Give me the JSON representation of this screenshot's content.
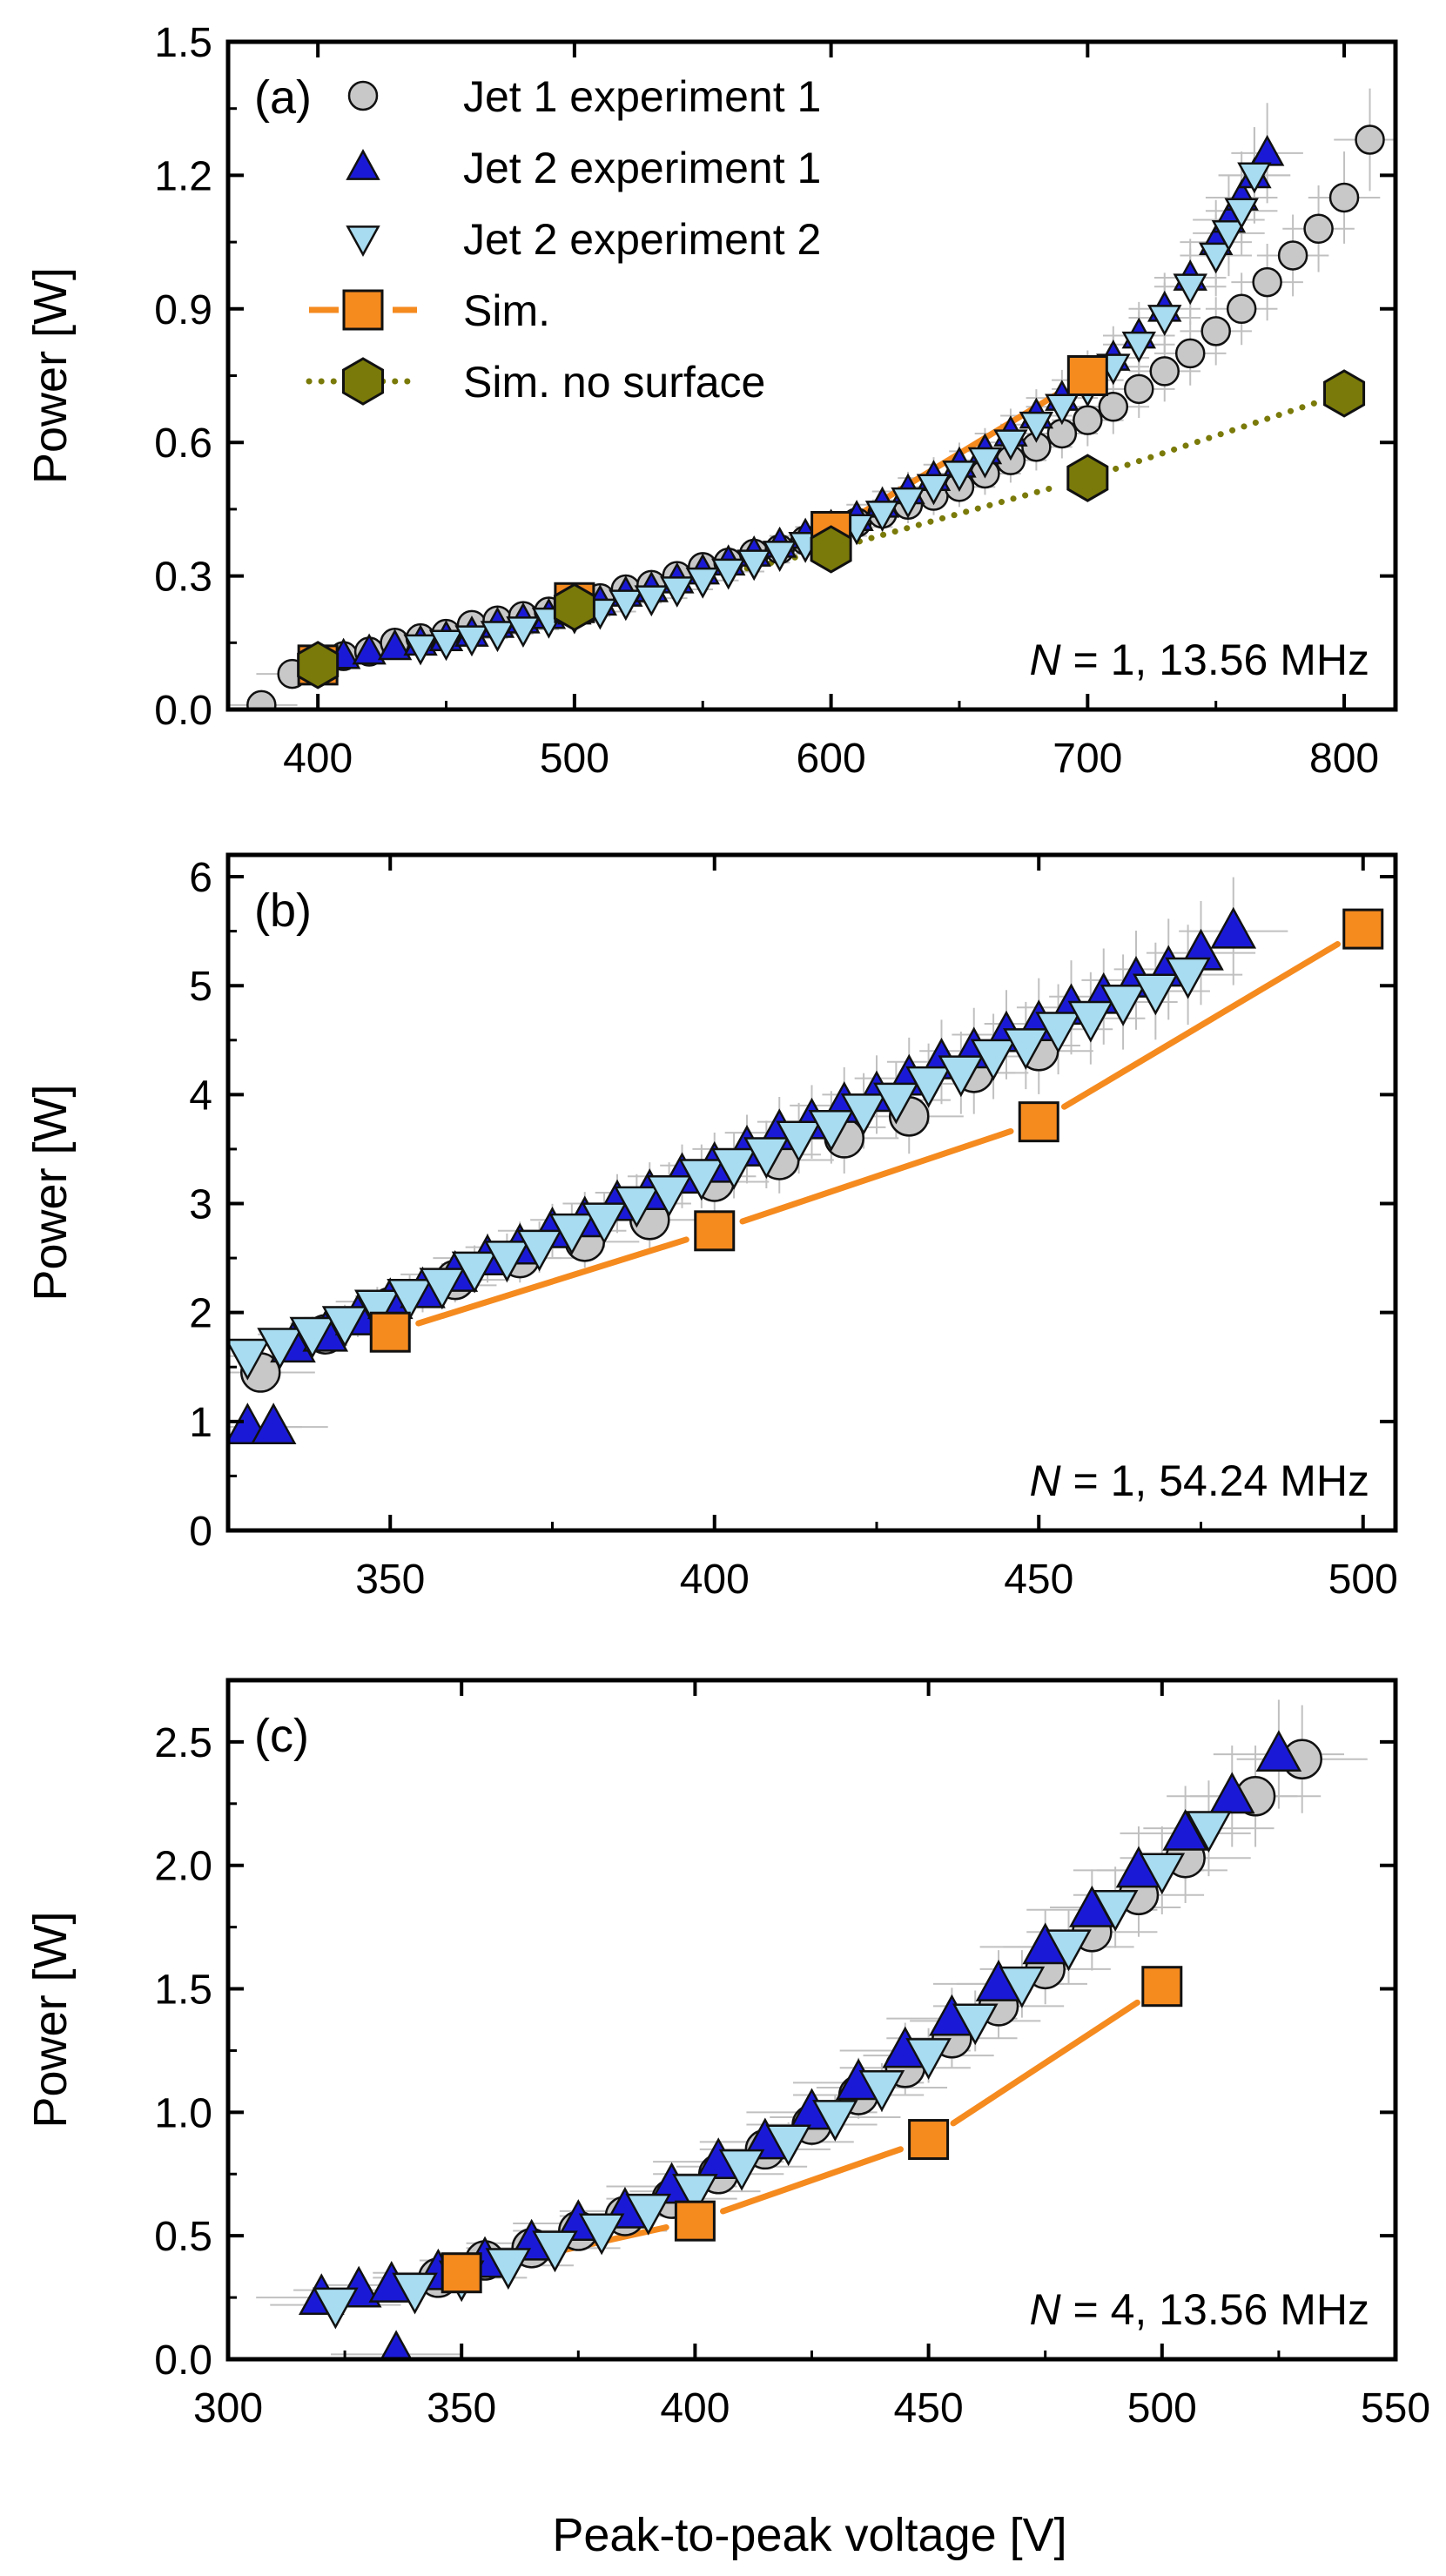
{
  "figure": {
    "xlabel": "Peak-to-peak voltage [V]",
    "legend": [
      {
        "label": "Jet 1 experiment 1",
        "marker": "circle"
      },
      {
        "label": "Jet 2 experiment 1",
        "marker": "triangle-up"
      },
      {
        "label": "Jet 2 experiment 2",
        "marker": "triangle-down"
      },
      {
        "label": "Sim.",
        "marker": "square"
      },
      {
        "label": "Sim. no surface",
        "marker": "hexagon"
      }
    ]
  },
  "colors": {
    "jet1": "#c8c8c8",
    "jet2_exp1": "#1a1ad6",
    "jet2_exp2": "#a8dcf0",
    "sim": "#f58a1f",
    "sim_no_surface": "#7a7a0a",
    "errorbar": "#c0c0c0"
  },
  "chart_data": [
    {
      "type": "scatter",
      "panel": "(a)",
      "annotation_var": "N",
      "annotation_rest": " = 1, 13.56 MHz",
      "ylabel": "Power [W]",
      "xlim": [
        365,
        820
      ],
      "ylim": [
        0,
        1.5
      ],
      "xticks": [
        400,
        500,
        600,
        700,
        800
      ],
      "xtick_labels": [
        "400",
        "500",
        "600",
        "700",
        "800"
      ],
      "yticks": [
        0,
        0.3,
        0.6,
        0.9,
        1.2,
        1.5
      ],
      "ytick_labels": [
        "0.0",
        "0.3",
        "0.6",
        "0.9",
        "1.2",
        "1.5"
      ],
      "series": [
        {
          "name": "Jet 1 experiment 1",
          "key": "jet1",
          "marker": "circle",
          "x": [
            378,
            390,
            400,
            410,
            420,
            430,
            440,
            450,
            460,
            470,
            480,
            490,
            500,
            510,
            520,
            530,
            540,
            550,
            560,
            570,
            580,
            590,
            600,
            610,
            620,
            630,
            640,
            650,
            660,
            670,
            680,
            690,
            700,
            710,
            720,
            730,
            740,
            750,
            760,
            770,
            780,
            790,
            800,
            810
          ],
          "y": [
            0.01,
            0.08,
            0.1,
            0.12,
            0.13,
            0.15,
            0.16,
            0.17,
            0.19,
            0.2,
            0.21,
            0.22,
            0.24,
            0.25,
            0.27,
            0.28,
            0.3,
            0.32,
            0.33,
            0.35,
            0.36,
            0.38,
            0.4,
            0.42,
            0.44,
            0.46,
            0.48,
            0.5,
            0.53,
            0.56,
            0.59,
            0.62,
            0.65,
            0.68,
            0.72,
            0.76,
            0.8,
            0.85,
            0.9,
            0.96,
            1.02,
            1.08,
            1.15,
            1.28
          ]
        },
        {
          "name": "Jet 2 experiment 1",
          "key": "jet2_exp1",
          "marker": "triangle-up",
          "x": [
            410,
            420,
            430,
            440,
            450,
            460,
            470,
            480,
            490,
            500,
            510,
            520,
            530,
            540,
            550,
            560,
            570,
            580,
            590,
            600,
            610,
            620,
            630,
            640,
            650,
            660,
            670,
            680,
            690,
            700,
            710,
            720,
            730,
            740,
            750,
            755,
            760,
            765,
            770
          ],
          "y": [
            0.12,
            0.13,
            0.14,
            0.15,
            0.16,
            0.17,
            0.19,
            0.2,
            0.21,
            0.22,
            0.24,
            0.26,
            0.27,
            0.29,
            0.31,
            0.33,
            0.35,
            0.37,
            0.39,
            0.41,
            0.43,
            0.46,
            0.49,
            0.52,
            0.55,
            0.58,
            0.62,
            0.66,
            0.7,
            0.74,
            0.79,
            0.84,
            0.9,
            0.97,
            1.05,
            1.1,
            1.15,
            1.2,
            1.25
          ]
        },
        {
          "name": "Jet 2 experiment 2",
          "key": "jet2_exp2",
          "marker": "triangle-down",
          "x": [
            440,
            450,
            460,
            470,
            480,
            490,
            500,
            510,
            520,
            530,
            540,
            550,
            560,
            570,
            580,
            590,
            600,
            610,
            620,
            630,
            640,
            650,
            660,
            670,
            680,
            690,
            700,
            710,
            720,
            730,
            740,
            750,
            755,
            760,
            765
          ],
          "y": [
            0.14,
            0.15,
            0.16,
            0.17,
            0.18,
            0.2,
            0.21,
            0.22,
            0.24,
            0.25,
            0.27,
            0.29,
            0.31,
            0.33,
            0.35,
            0.37,
            0.39,
            0.41,
            0.44,
            0.47,
            0.5,
            0.53,
            0.56,
            0.6,
            0.64,
            0.68,
            0.72,
            0.77,
            0.82,
            0.88,
            0.95,
            1.02,
            1.07,
            1.12,
            1.2
          ]
        },
        {
          "name": "Sim.",
          "key": "sim",
          "marker": "square",
          "line": "solid",
          "x": [
            400,
            500,
            600,
            700
          ],
          "y": [
            0.1,
            0.24,
            0.4,
            0.75
          ]
        },
        {
          "name": "Sim. no surface",
          "key": "sim_no_surface",
          "marker": "hexagon",
          "line": "dotted",
          "x": [
            400,
            500,
            600,
            700,
            800
          ],
          "y": [
            0.1,
            0.23,
            0.36,
            0.52,
            0.71
          ]
        }
      ]
    },
    {
      "type": "scatter",
      "panel": "(b)",
      "annotation_var": "N",
      "annotation_rest": " = 1, 54.24 MHz",
      "ylabel": "Power [W]",
      "xlim": [
        325,
        505
      ],
      "ylim": [
        0,
        6.2
      ],
      "xticks": [
        350,
        400,
        450,
        500
      ],
      "xtick_labels": [
        "350",
        "400",
        "450",
        "500"
      ],
      "yticks": [
        0,
        1,
        2,
        3,
        4,
        5,
        6
      ],
      "ytick_labels": [
        "0",
        "1",
        "2",
        "3",
        "4",
        "5",
        "6"
      ],
      "series": [
        {
          "name": "Jet 1 experiment 1",
          "key": "jet1",
          "marker": "circle",
          "x": [
            330,
            340,
            350,
            360,
            370,
            380,
            390,
            400,
            410,
            420,
            430,
            440,
            450
          ],
          "y": [
            1.45,
            1.8,
            2.05,
            2.3,
            2.5,
            2.65,
            2.85,
            3.2,
            3.4,
            3.6,
            3.8,
            4.2,
            4.4
          ]
        },
        {
          "name": "Jet 2 experiment 1",
          "key": "jet2_exp1",
          "marker": "triangle-up",
          "x": [
            328,
            332,
            335,
            340,
            345,
            350,
            355,
            360,
            365,
            370,
            375,
            380,
            385,
            390,
            395,
            400,
            405,
            410,
            415,
            420,
            425,
            430,
            435,
            440,
            445,
            450,
            455,
            460,
            465,
            470,
            475,
            480
          ],
          "y": [
            0.95,
            0.95,
            1.7,
            1.8,
            1.95,
            2.1,
            2.2,
            2.35,
            2.5,
            2.6,
            2.75,
            2.85,
            3.0,
            3.1,
            3.25,
            3.35,
            3.5,
            3.65,
            3.75,
            3.9,
            4.0,
            4.15,
            4.3,
            4.4,
            4.55,
            4.65,
            4.8,
            4.9,
            5.05,
            5.15,
            5.3,
            5.5
          ]
        },
        {
          "name": "Jet 2 experiment 2",
          "key": "jet2_exp2",
          "marker": "triangle-down",
          "x": [
            328,
            333,
            338,
            343,
            348,
            353,
            358,
            363,
            368,
            373,
            378,
            383,
            388,
            393,
            398,
            403,
            408,
            413,
            418,
            423,
            428,
            433,
            438,
            443,
            448,
            453,
            458,
            463,
            468,
            473
          ],
          "y": [
            1.6,
            1.7,
            1.8,
            1.9,
            2.05,
            2.15,
            2.25,
            2.4,
            2.5,
            2.6,
            2.75,
            2.85,
            3.0,
            3.1,
            3.25,
            3.35,
            3.45,
            3.6,
            3.7,
            3.85,
            3.95,
            4.1,
            4.2,
            4.35,
            4.45,
            4.6,
            4.7,
            4.85,
            4.95,
            5.1
          ]
        },
        {
          "name": "Sim.",
          "key": "sim",
          "marker": "square",
          "line": "solid",
          "x": [
            350,
            400,
            450,
            500
          ],
          "y": [
            1.82,
            2.75,
            3.75,
            5.52
          ]
        }
      ]
    },
    {
      "type": "scatter",
      "panel": "(c)",
      "annotation_var": "N",
      "annotation_rest": " = 4, 13.56 MHz",
      "ylabel": "Power [W]",
      "xlim": [
        300,
        550
      ],
      "ylim": [
        0,
        2.75
      ],
      "xticks": [
        300,
        350,
        400,
        450,
        500,
        550
      ],
      "xtick_labels": [
        "300",
        "350",
        "400",
        "450",
        "500",
        "550"
      ],
      "yticks": [
        0,
        0.5,
        1.0,
        1.5,
        2.0,
        2.5
      ],
      "ytick_labels": [
        "0.0",
        "0.5",
        "1.0",
        "1.5",
        "2.0",
        "2.5"
      ],
      "series": [
        {
          "name": "Jet 1 experiment 1",
          "key": "jet1",
          "marker": "circle",
          "x": [
            345,
            355,
            365,
            375,
            385,
            395,
            405,
            415,
            425,
            435,
            445,
            455,
            465,
            475,
            485,
            495,
            505,
            520,
            530
          ],
          "y": [
            0.33,
            0.4,
            0.45,
            0.52,
            0.58,
            0.65,
            0.75,
            0.85,
            0.95,
            1.07,
            1.18,
            1.3,
            1.43,
            1.58,
            1.73,
            1.88,
            2.03,
            2.28,
            2.43
          ]
        },
        {
          "name": "Jet 2 experiment 1",
          "key": "jet2_exp1",
          "marker": "triangle-up",
          "x": [
            320,
            328,
            335,
            336,
            345,
            355,
            365,
            375,
            385,
            395,
            405,
            415,
            425,
            435,
            445,
            455,
            465,
            475,
            485,
            495,
            505,
            515,
            525
          ],
          "y": [
            0.25,
            0.28,
            0.3,
            0.02,
            0.35,
            0.4,
            0.47,
            0.55,
            0.6,
            0.7,
            0.8,
            0.88,
            1.0,
            1.12,
            1.25,
            1.38,
            1.52,
            1.67,
            1.82,
            1.98,
            2.13,
            2.28,
            2.45
          ]
        },
        {
          "name": "Jet 2 experiment 2",
          "key": "jet2_exp2",
          "marker": "triangle-down",
          "x": [
            323,
            340,
            350,
            360,
            370,
            380,
            390,
            400,
            410,
            420,
            430,
            440,
            450,
            460,
            470,
            480,
            490,
            500,
            510
          ],
          "y": [
            0.22,
            0.28,
            0.33,
            0.38,
            0.45,
            0.52,
            0.6,
            0.68,
            0.78,
            0.88,
            0.98,
            1.1,
            1.23,
            1.37,
            1.52,
            1.67,
            1.83,
            1.98,
            2.15
          ]
        },
        {
          "name": "Sim.",
          "key": "sim",
          "marker": "square",
          "line": "solid",
          "x": [
            350,
            400,
            450,
            500
          ],
          "y": [
            0.35,
            0.56,
            0.89,
            1.51
          ]
        }
      ]
    }
  ]
}
